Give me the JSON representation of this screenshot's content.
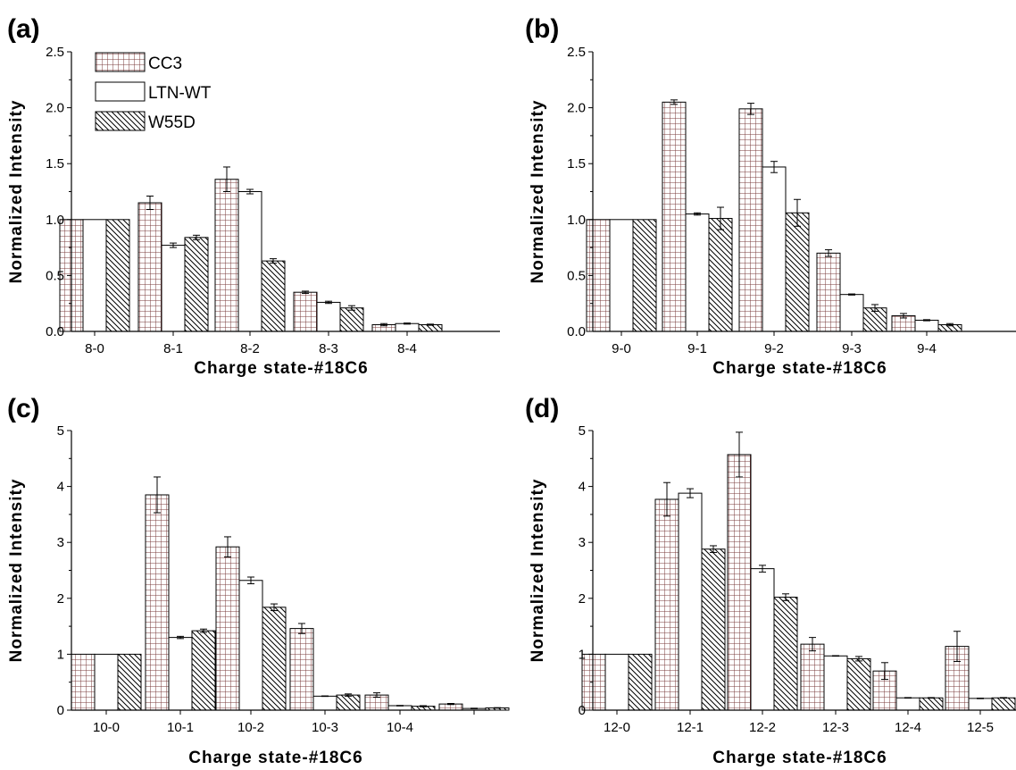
{
  "legend": [
    {
      "name": "CC3",
      "pattern": "grid"
    },
    {
      "name": "LTN-WT",
      "pattern": "empty"
    },
    {
      "name": "W55D",
      "pattern": "hatch"
    }
  ],
  "colors": {
    "grid": "#7a3b3b",
    "ink": "#000000",
    "background": "#ffffff"
  },
  "chart_data": [
    {
      "panel": "(a)",
      "type": "bar",
      "xlabel": "Charge state-#18C6",
      "ylabel": "Normalized Intensity",
      "ylim": [
        0,
        2.5
      ],
      "yticks": [
        "0.0",
        "0.5",
        "1.0",
        "1.5",
        "2.0",
        "2.5"
      ],
      "categories": [
        "8-0",
        "8-1",
        "8-2",
        "8-3",
        "8-4"
      ],
      "legend_position": "top-left",
      "series": [
        {
          "name": "CC3",
          "values": [
            1.0,
            1.15,
            1.36,
            0.35,
            0.06
          ],
          "errors": [
            0,
            0.06,
            0.11,
            0.01,
            0.01
          ]
        },
        {
          "name": "LTN-WT",
          "values": [
            1.0,
            0.77,
            1.25,
            0.26,
            0.07
          ],
          "errors": [
            0,
            0.02,
            0.02,
            0.01,
            0.005
          ]
        },
        {
          "name": "W55D",
          "values": [
            1.0,
            0.84,
            0.63,
            0.21,
            0.06
          ],
          "errors": [
            0,
            0.02,
            0.02,
            0.02,
            0.005
          ]
        }
      ]
    },
    {
      "panel": "(b)",
      "type": "bar",
      "xlabel": "Charge state-#18C6",
      "ylabel": "Normalized Intensity",
      "ylim": [
        0,
        2.5
      ],
      "yticks": [
        "0.0",
        "0.5",
        "1.0",
        "1.5",
        "2.0",
        "2.5"
      ],
      "categories": [
        "9-0",
        "9-1",
        "9-2",
        "9-3",
        "9-4"
      ],
      "series": [
        {
          "name": "CC3",
          "values": [
            1.0,
            2.05,
            1.99,
            0.7,
            0.14
          ],
          "errors": [
            0,
            0.02,
            0.05,
            0.03,
            0.02
          ]
        },
        {
          "name": "LTN-WT",
          "values": [
            1.0,
            1.05,
            1.47,
            0.33,
            0.1
          ],
          "errors": [
            0,
            0.01,
            0.05,
            0.005,
            0.005
          ]
        },
        {
          "name": "W55D",
          "values": [
            1.0,
            1.01,
            1.06,
            0.21,
            0.06
          ],
          "errors": [
            0,
            0.1,
            0.12,
            0.03,
            0.01
          ]
        }
      ]
    },
    {
      "panel": "(c)",
      "type": "bar",
      "xlabel": "Charge state-#18C6",
      "ylabel": "Normalized Intensity",
      "ylim": [
        0,
        5
      ],
      "yticks": [
        "0",
        "1",
        "2",
        "3",
        "4",
        "5"
      ],
      "categories": [
        "10-0",
        "10-1",
        "10-2",
        "10-3",
        "10-4",
        ""
      ],
      "series": [
        {
          "name": "CC3",
          "values": [
            1.0,
            3.85,
            2.92,
            1.46,
            0.27,
            0.11
          ],
          "errors": [
            0,
            0.32,
            0.18,
            0.09,
            0.04,
            0.01
          ]
        },
        {
          "name": "LTN-WT",
          "values": [
            1.0,
            1.3,
            2.32,
            0.25,
            0.08,
            0.03
          ],
          "errors": [
            0,
            0.02,
            0.06,
            0.005,
            0.005,
            0.005
          ]
        },
        {
          "name": "W55D",
          "values": [
            1.0,
            1.42,
            1.84,
            0.27,
            0.07,
            0.04
          ],
          "errors": [
            0,
            0.03,
            0.06,
            0.02,
            0.01,
            0.005
          ]
        }
      ]
    },
    {
      "panel": "(d)",
      "type": "bar",
      "xlabel": "Charge state-#18C6",
      "ylabel": "Normalized Intensity",
      "ylim": [
        0,
        5
      ],
      "yticks": [
        "0",
        "1",
        "2",
        "3",
        "4",
        "5"
      ],
      "categories": [
        "12-0",
        "12-1",
        "12-2",
        "12-3",
        "12-4",
        "12-5"
      ],
      "series": [
        {
          "name": "CC3",
          "values": [
            1.0,
            3.77,
            4.57,
            1.18,
            0.7,
            1.14
          ],
          "errors": [
            0,
            0.3,
            0.4,
            0.12,
            0.15,
            0.27
          ]
        },
        {
          "name": "LTN-WT",
          "values": [
            1.0,
            3.88,
            2.53,
            0.97,
            0.22,
            0.21
          ],
          "errors": [
            0,
            0.08,
            0.06,
            0.005,
            0.005,
            0.005
          ]
        },
        {
          "name": "W55D",
          "values": [
            1.0,
            2.88,
            2.02,
            0.92,
            0.22,
            0.22
          ],
          "errors": [
            0,
            0.06,
            0.06,
            0.04,
            0.005,
            0.005
          ]
        }
      ]
    }
  ]
}
